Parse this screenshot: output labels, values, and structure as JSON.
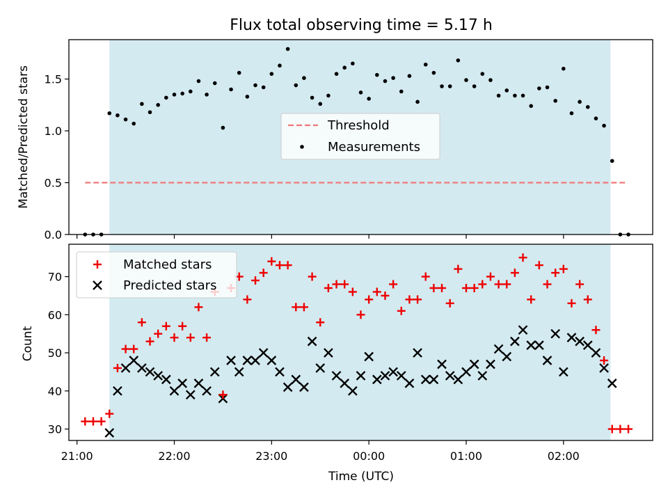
{
  "figure": {
    "title": "Flux total observing time = 5.17 h"
  },
  "colors": {
    "shade": "#d3eaf0",
    "threshold": "#f07878",
    "matched": "#ee0000",
    "predicted": "#000000",
    "measurement": "#000000"
  },
  "chart_data": [
    {
      "type": "scatter",
      "panel": "top",
      "ylabel": "Matched/Predicted stars",
      "ylim": [
        0,
        1.88
      ],
      "yticks": [
        0.0,
        0.5,
        1.0,
        1.5
      ],
      "ytick_labels": [
        "0.0",
        "0.5",
        "1.0",
        "1.5"
      ],
      "shaded_interval": [
        "21:20",
        "02:29"
      ],
      "legend": {
        "position": "center",
        "entries": [
          "Threshold",
          "Measurements"
        ]
      },
      "threshold": {
        "name": "Threshold",
        "value": 0.5,
        "x": [
          "21:05",
          "02:38"
        ]
      },
      "series": [
        {
          "name": "Measurements",
          "x": [
            "21:05",
            "21:10",
            "21:15",
            "21:20",
            "21:25",
            "21:30",
            "21:35",
            "21:40",
            "21:45",
            "21:50",
            "21:55",
            "22:00",
            "22:05",
            "22:10",
            "22:15",
            "22:20",
            "22:25",
            "22:30",
            "22:35",
            "22:40",
            "22:45",
            "22:50",
            "22:55",
            "23:00",
            "23:05",
            "23:10",
            "23:15",
            "23:20",
            "23:25",
            "23:30",
            "23:35",
            "23:40",
            "23:45",
            "23:50",
            "23:55",
            "00:00",
            "00:05",
            "00:10",
            "00:15",
            "00:20",
            "00:25",
            "00:30",
            "00:35",
            "00:40",
            "00:45",
            "00:50",
            "00:55",
            "01:00",
            "01:05",
            "01:10",
            "01:15",
            "01:20",
            "01:25",
            "01:30",
            "01:35",
            "01:40",
            "01:45",
            "01:50",
            "01:55",
            "02:00",
            "02:05",
            "02:10",
            "02:15",
            "02:20",
            "02:25",
            "02:30",
            "02:35",
            "02:40"
          ],
          "values": [
            0.0,
            0.0,
            0.0,
            1.17,
            1.15,
            1.11,
            1.07,
            1.26,
            1.18,
            1.25,
            1.32,
            1.35,
            1.36,
            1.38,
            1.48,
            1.35,
            1.46,
            1.03,
            1.4,
            1.56,
            1.33,
            1.44,
            1.42,
            1.55,
            1.63,
            1.79,
            1.44,
            1.51,
            1.32,
            1.26,
            1.34,
            1.55,
            1.61,
            1.65,
            1.37,
            1.31,
            1.54,
            1.48,
            1.51,
            1.38,
            1.53,
            1.28,
            1.64,
            1.56,
            1.43,
            1.43,
            1.68,
            1.49,
            1.43,
            1.55,
            1.49,
            1.34,
            1.39,
            1.34,
            1.34,
            1.24,
            1.41,
            1.42,
            1.29,
            1.6,
            1.17,
            1.28,
            1.23,
            1.12,
            1.05,
            0.71,
            0.0,
            0.0
          ]
        }
      ]
    },
    {
      "type": "scatter",
      "panel": "bottom",
      "xlabel": "Time (UTC)",
      "ylabel": "Count",
      "ylim": [
        27,
        78.5
      ],
      "yticks": [
        30,
        40,
        50,
        60,
        70
      ],
      "ytick_labels": [
        "30",
        "40",
        "50",
        "60",
        "70"
      ],
      "xlim": [
        "20:55",
        "02:55"
      ],
      "xticks": [
        "21:00",
        "22:00",
        "23:00",
        "00:00",
        "01:00",
        "02:00"
      ],
      "shaded_interval": [
        "21:20",
        "02:29"
      ],
      "legend": {
        "position": "upper-left",
        "entries": [
          "Matched stars",
          "Predicted stars"
        ]
      },
      "x": [
        "21:05",
        "21:10",
        "21:15",
        "21:20",
        "21:25",
        "21:30",
        "21:35",
        "21:40",
        "21:45",
        "21:50",
        "21:55",
        "22:00",
        "22:05",
        "22:10",
        "22:15",
        "22:20",
        "22:25",
        "22:30",
        "22:35",
        "22:40",
        "22:45",
        "22:50",
        "22:55",
        "23:00",
        "23:05",
        "23:10",
        "23:15",
        "23:20",
        "23:25",
        "23:30",
        "23:35",
        "23:40",
        "23:45",
        "23:50",
        "23:55",
        "00:00",
        "00:05",
        "00:10",
        "00:15",
        "00:20",
        "00:25",
        "00:30",
        "00:35",
        "00:40",
        "00:45",
        "00:50",
        "00:55",
        "01:00",
        "01:05",
        "01:10",
        "01:15",
        "01:20",
        "01:25",
        "01:30",
        "01:35",
        "01:40",
        "01:45",
        "01:50",
        "01:55",
        "02:00",
        "02:05",
        "02:10",
        "02:15",
        "02:20",
        "02:25",
        "02:30",
        "02:35",
        "02:40"
      ],
      "series": [
        {
          "name": "Matched stars",
          "marker": "+",
          "values": [
            32,
            32,
            32,
            34,
            46,
            51,
            51,
            58,
            53,
            55,
            57,
            54,
            57,
            54,
            62,
            54,
            66,
            39,
            67,
            70,
            64,
            69,
            71,
            74,
            73,
            73,
            62,
            62,
            70,
            58,
            67,
            68,
            68,
            66,
            60,
            64,
            66,
            65,
            68,
            61,
            64,
            64,
            70,
            67,
            67,
            63,
            72,
            67,
            67,
            68,
            70,
            68,
            68,
            71,
            75,
            64,
            73,
            68,
            71,
            72,
            63,
            68,
            64,
            56,
            48,
            30,
            30,
            30
          ]
        },
        {
          "name": "Predicted stars",
          "marker": "x",
          "values": [
            null,
            null,
            null,
            29,
            40,
            46,
            48,
            46,
            45,
            44,
            43,
            40,
            42,
            39,
            42,
            40,
            45,
            38,
            48,
            45,
            48,
            48,
            50,
            48,
            45,
            41,
            43,
            41,
            53,
            46,
            50,
            44,
            42,
            40,
            44,
            49,
            43,
            44,
            45,
            44,
            42,
            50,
            43,
            43,
            47,
            44,
            43,
            45,
            47,
            44,
            47,
            51,
            49,
            53,
            56,
            52,
            52,
            48,
            55,
            45,
            54,
            53,
            52,
            50,
            46,
            42,
            null,
            null
          ]
        }
      ]
    }
  ]
}
